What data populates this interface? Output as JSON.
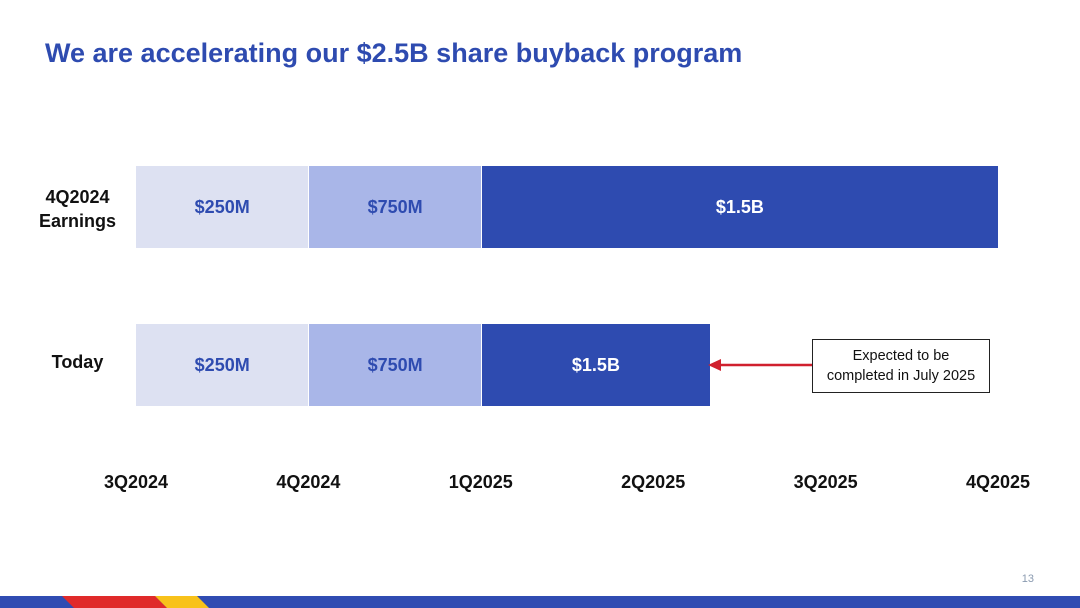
{
  "slide": {
    "title": "We are accelerating our $2.5B share buyback program",
    "page_number": "13"
  },
  "callout": {
    "line1": "Expected to be",
    "line2": "completed in July 2025"
  },
  "colors": {
    "title": "#2e4bb0",
    "seg1": "#dde1f2",
    "seg2": "#a9b6e8",
    "seg3": "#2e4bb0",
    "arrow": "#d0202e",
    "footer_blue": "#304cb2",
    "footer_red": "#e02a2a",
    "footer_yellow": "#f8c21a"
  },
  "chart_data": {
    "type": "bar",
    "orientation": "horizontal",
    "stacked": true,
    "x_ticks": [
      "3Q2024",
      "4Q2024",
      "1Q2025",
      "2Q2025",
      "3Q2025",
      "4Q2025"
    ],
    "xlim": [
      0,
      5
    ],
    "rows": [
      {
        "label_lines": [
          "4Q2024",
          "Earnings"
        ],
        "segments": [
          {
            "label": "$250M",
            "start": 0,
            "end": 1
          },
          {
            "label": "$750M",
            "start": 1,
            "end": 2
          },
          {
            "label": "$1.5B",
            "start": 2,
            "end": 5
          }
        ]
      },
      {
        "label_lines": [
          "Today"
        ],
        "segments": [
          {
            "label": "$250M",
            "start": 0,
            "end": 1
          },
          {
            "label": "$750M",
            "start": 1,
            "end": 2
          },
          {
            "label": "$1.5B",
            "start": 2,
            "end": 3.33
          }
        ]
      }
    ]
  }
}
